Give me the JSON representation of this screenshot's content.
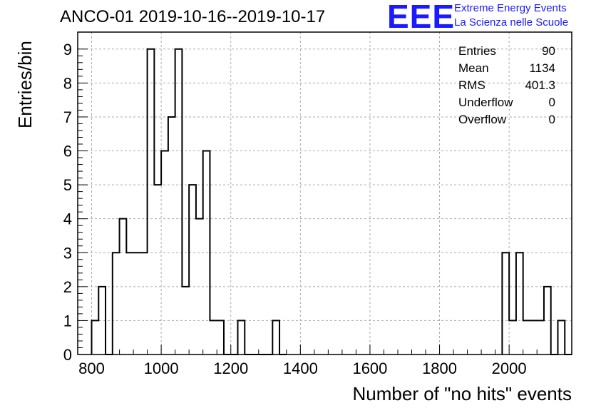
{
  "header": {
    "title": "ANCO-01 2019-10-16--2019-10-17",
    "logo": "EEE",
    "logo_line1": "Extreme Energy Events",
    "logo_line2": "La Scienza nelle Scuole"
  },
  "stats": [
    {
      "label": "Entries",
      "value": "90"
    },
    {
      "label": "Mean",
      "value": "1134"
    },
    {
      "label": "RMS",
      "value": "401.3"
    },
    {
      "label": "Underflow",
      "value": "0"
    },
    {
      "label": "Overflow",
      "value": "0"
    }
  ],
  "colors": {
    "line": "#000000",
    "grid": "#aaaaaa",
    "logo": "#1a1aff"
  },
  "chart_data": {
    "type": "histogram",
    "title": "ANCO-01 2019-10-16--2019-10-17",
    "xlabel": "Number of \"no hits\" events",
    "ylabel": "Entries/bin",
    "xlim": [
      760,
      2180
    ],
    "ylim": [
      0,
      9.5
    ],
    "bin_width": 20,
    "x_ticks": [
      800,
      1000,
      1200,
      1400,
      1600,
      1800,
      2000
    ],
    "y_ticks": [
      0,
      1,
      2,
      3,
      4,
      5,
      6,
      7,
      8,
      9
    ],
    "grid": true,
    "legend": "stats box top-right",
    "bins": [
      {
        "x": 800,
        "y": 1
      },
      {
        "x": 820,
        "y": 2
      },
      {
        "x": 840,
        "y": 0
      },
      {
        "x": 860,
        "y": 3
      },
      {
        "x": 880,
        "y": 4
      },
      {
        "x": 900,
        "y": 3
      },
      {
        "x": 920,
        "y": 3
      },
      {
        "x": 940,
        "y": 3
      },
      {
        "x": 960,
        "y": 9
      },
      {
        "x": 980,
        "y": 5
      },
      {
        "x": 1000,
        "y": 6
      },
      {
        "x": 1020,
        "y": 7
      },
      {
        "x": 1040,
        "y": 9
      },
      {
        "x": 1060,
        "y": 2
      },
      {
        "x": 1080,
        "y": 5
      },
      {
        "x": 1100,
        "y": 4
      },
      {
        "x": 1120,
        "y": 6
      },
      {
        "x": 1140,
        "y": 1
      },
      {
        "x": 1160,
        "y": 1
      },
      {
        "x": 1180,
        "y": 0
      },
      {
        "x": 1200,
        "y": 0
      },
      {
        "x": 1220,
        "y": 1
      },
      {
        "x": 1240,
        "y": 0
      },
      {
        "x": 1260,
        "y": 0
      },
      {
        "x": 1280,
        "y": 0
      },
      {
        "x": 1300,
        "y": 0
      },
      {
        "x": 1320,
        "y": 1
      },
      {
        "x": 1340,
        "y": 0
      },
      {
        "x": 1980,
        "y": 3
      },
      {
        "x": 2000,
        "y": 1
      },
      {
        "x": 2020,
        "y": 3
      },
      {
        "x": 2040,
        "y": 1
      },
      {
        "x": 2060,
        "y": 1
      },
      {
        "x": 2080,
        "y": 1
      },
      {
        "x": 2100,
        "y": 2
      },
      {
        "x": 2120,
        "y": 0
      },
      {
        "x": 2140,
        "y": 1
      },
      {
        "x": 2160,
        "y": 0
      }
    ]
  }
}
